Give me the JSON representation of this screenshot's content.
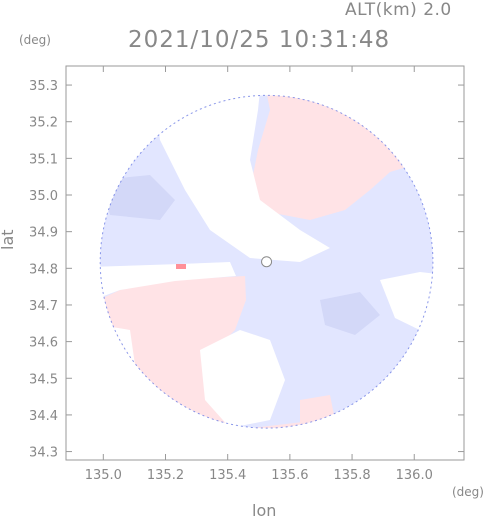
{
  "header": {
    "alt_label": "ALT(km) 2.0",
    "timestamp": "2021/10/25 10:31:48"
  },
  "axes": {
    "x_title": "lon",
    "y_title": "lat",
    "x_unit": "(deg)",
    "y_unit": "(deg)",
    "x_ticks": [
      {
        "value": 135.0,
        "label": "135.0"
      },
      {
        "value": 135.2,
        "label": "135.2"
      },
      {
        "value": 135.4,
        "label": "135.4"
      },
      {
        "value": 135.6,
        "label": "135.6"
      },
      {
        "value": 135.8,
        "label": "135.8"
      },
      {
        "value": 136.0,
        "label": "136.0"
      }
    ],
    "y_ticks": [
      {
        "value": 34.3,
        "label": "34.3"
      },
      {
        "value": 34.4,
        "label": "34.4"
      },
      {
        "value": 34.5,
        "label": "34.5"
      },
      {
        "value": 34.6,
        "label": "34.6"
      },
      {
        "value": 34.7,
        "label": "34.7"
      },
      {
        "value": 34.8,
        "label": "34.8"
      },
      {
        "value": 34.9,
        "label": "34.9"
      },
      {
        "value": 35.0,
        "label": "35.0"
      },
      {
        "value": 35.1,
        "label": "35.1"
      },
      {
        "value": 35.2,
        "label": "35.2"
      },
      {
        "value": 35.3,
        "label": "35.3"
      }
    ],
    "x_range": [
      134.88,
      136.16
    ],
    "y_range": [
      34.277,
      35.352
    ]
  },
  "radar": {
    "center": {
      "lon": 135.525,
      "lat": 34.818
    },
    "radius_deg": 0.535,
    "colors": {
      "away": "#ffe3e6",
      "toward": "#e2e6ff",
      "toward_strong": "#d3d8f8",
      "strong_red": "#ff9098",
      "edge": "#5a6ce0",
      "frame": "#9a9a9a"
    }
  }
}
